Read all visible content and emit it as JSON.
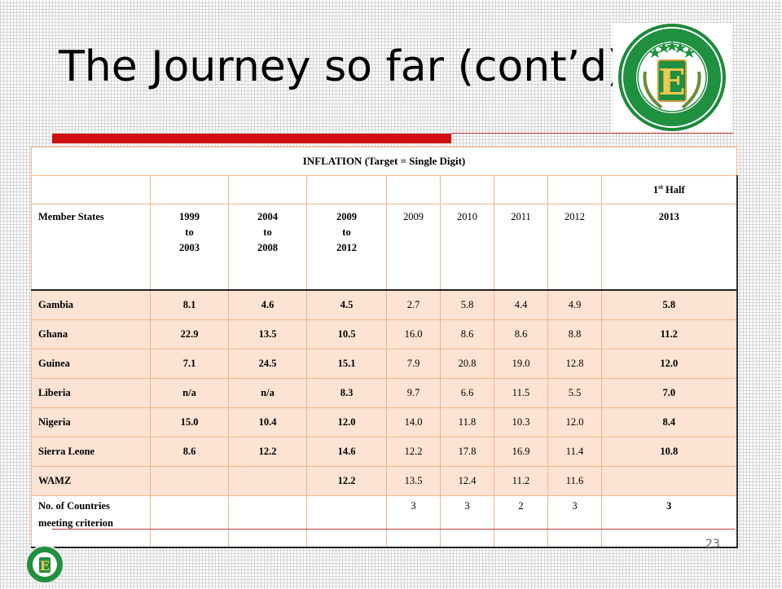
{
  "slide": {
    "title": "The Journey so far (cont’d)",
    "page_number": "23",
    "logo_text_outer": "WEST AFRICAN MONETARY INSTITUTE",
    "logo_text_inner": "INSTITUT MONÉTAIRE DE L’AFRIQUE DE L’OUEST",
    "logo_letter": "E"
  },
  "table": {
    "caption": "INFLATION (Target = Single Digit)",
    "half_label_sup": "st",
    "half_label_num": "1",
    "half_label_rest": " Half",
    "headers": {
      "member_states": "Member States",
      "p1": [
        "1999",
        "to",
        "2003"
      ],
      "p2": [
        "2004",
        "to",
        "2008"
      ],
      "p3": [
        "2009",
        "to",
        "2012"
      ],
      "y2009": "2009",
      "y2010": "2010",
      "y2011": "2011",
      "y2012": "2012",
      "y2013": "2013"
    },
    "rows": [
      {
        "name": "Gambia",
        "vals": [
          "8.1",
          "4.6",
          "4.5",
          "2.7",
          "5.8",
          "4.4",
          "4.9",
          "5.8"
        ]
      },
      {
        "name": "Ghana",
        "vals": [
          "22.9",
          "13.5",
          "10.5",
          "16.0",
          "8.6",
          "8.6",
          "8.8",
          "11.2"
        ]
      },
      {
        "name": "Guinea",
        "vals": [
          "7.1",
          "24.5",
          "15.1",
          "7.9",
          "20.8",
          "19.0",
          "12.8",
          "12.0"
        ]
      },
      {
        "name": "Liberia",
        "vals": [
          "n/a",
          "n/a",
          "8.3",
          "9.7",
          "6.6",
          "11.5",
          "5.5",
          "7.0"
        ]
      },
      {
        "name": "Nigeria",
        "vals": [
          "15.0",
          "10.4",
          "12.0",
          "14.0",
          "11.8",
          "10.3",
          "12.0",
          "8.4"
        ]
      },
      {
        "name": "Sierra Leone",
        "vals": [
          "8.6",
          "12.2",
          "14.6",
          "12.2",
          "17.8",
          "16.9",
          "11.4",
          "10.8"
        ]
      },
      {
        "name": "WAMZ",
        "vals": [
          "",
          "",
          "12.2",
          "13.5",
          "12.4",
          "11.2",
          "11.6",
          ""
        ]
      }
    ],
    "criterion": {
      "label_line1": "No. of Countries",
      "label_line2": "meeting criterion",
      "vals": [
        "",
        "",
        "",
        "3",
        "3",
        "2",
        "3",
        "3"
      ]
    }
  }
}
